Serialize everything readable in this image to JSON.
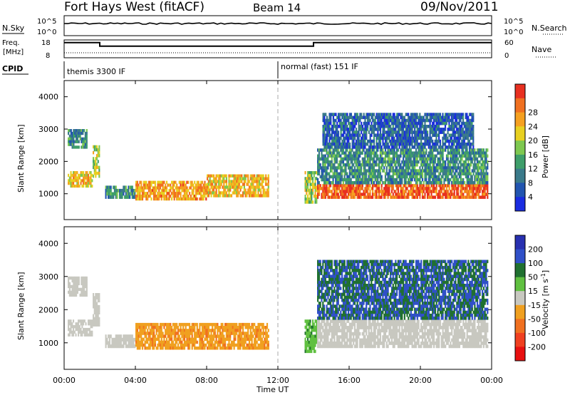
{
  "header": {
    "station": "Fort Hays West (fitACF)",
    "beam": "Beam 14",
    "date": "09/Nov/2011"
  },
  "noise_panel": {
    "left_label": "N.Sky",
    "right_label": "N.Search",
    "left_ticks": [
      "10^5",
      "10^0"
    ],
    "right_ticks": [
      "10^5",
      "10^0"
    ]
  },
  "freq_panel": {
    "left_label_1": "Freq.",
    "left_label_2": "[MHz]",
    "right_label": "Nave",
    "left_ticks": [
      "18",
      "8"
    ],
    "right_ticks": [
      "60",
      "0"
    ]
  },
  "cpid": {
    "label": "CPID",
    "modes": [
      {
        "name": "themis 3300 IF",
        "start_hour": 0
      },
      {
        "name": "normal (fast) 151 IF",
        "start_hour": 12
      }
    ]
  },
  "freq_trace": [
    {
      "hour": 0,
      "mhz": 16.5
    },
    {
      "hour": 2,
      "mhz": 16.5
    },
    {
      "hour": 2,
      "mhz": 14.5
    },
    {
      "hour": 14,
      "mhz": 14.5
    },
    {
      "hour": 14,
      "mhz": 16.5
    },
    {
      "hour": 24,
      "mhz": 16.5
    }
  ],
  "chart_data": [
    {
      "type": "heatmap",
      "quantity": "Power",
      "ylabel": "Slant Range [km]",
      "xlabel": "Time UT",
      "xlim": [
        0,
        24
      ],
      "ylim": [
        200,
        4500
      ],
      "yticks": [
        "1000",
        "2000",
        "3000",
        "4000"
      ],
      "xticks": [
        "00:00",
        "04:00",
        "08:00",
        "12:00",
        "16:00",
        "20:00",
        "00:00"
      ],
      "colorbar": {
        "label": "Power [dB]",
        "ticks": [
          "4",
          "8",
          "12",
          "16",
          "20",
          "24",
          "28"
        ],
        "range": [
          0,
          30
        ],
        "colors": [
          "#1a2ce0",
          "#2255b0",
          "#3a7a8a",
          "#3e9e6a",
          "#7ec850",
          "#e8d020",
          "#f5a020",
          "#f07020",
          "#e83020"
        ]
      },
      "echo_regions": [
        {
          "t0": 0.2,
          "t1": 1.6,
          "r0": 1200,
          "r1": 1700,
          "level": 20
        },
        {
          "t0": 0.2,
          "t1": 1.3,
          "r0": 2400,
          "r1": 3000,
          "level": 10
        },
        {
          "t0": 1.6,
          "t1": 2.0,
          "r0": 1500,
          "r1": 2500,
          "level": 16
        },
        {
          "t0": 2.3,
          "t1": 4.0,
          "r0": 850,
          "r1": 1250,
          "level": 10
        },
        {
          "t0": 4.0,
          "t1": 8.0,
          "r0": 800,
          "r1": 1400,
          "level": 22
        },
        {
          "t0": 8.0,
          "t1": 11.5,
          "r0": 900,
          "r1": 1600,
          "level": 20
        },
        {
          "t0": 13.5,
          "t1": 14.2,
          "r0": 700,
          "r1": 1700,
          "level": 16
        },
        {
          "t0": 14.2,
          "t1": 23.8,
          "r0": 850,
          "r1": 1300,
          "level": 26
        },
        {
          "t0": 14.2,
          "t1": 23.8,
          "r0": 1300,
          "r1": 2400,
          "level": 10
        },
        {
          "t0": 14.5,
          "t1": 23.0,
          "r0": 2400,
          "r1": 3500,
          "level": 6
        }
      ]
    },
    {
      "type": "heatmap",
      "quantity": "Velocity",
      "ylabel": "Slant Range [km]",
      "xlabel": "Time UT",
      "xlim": [
        0,
        24
      ],
      "ylim": [
        200,
        4500
      ],
      "yticks": [
        "1000",
        "2000",
        "3000",
        "4000"
      ],
      "xticks": [
        "00:00",
        "04:00",
        "08:00",
        "12:00",
        "16:00",
        "20:00",
        "00:00"
      ],
      "colorbar": {
        "label": "Velocity [m s",
        "label_sup": "-1",
        "label_end": "]",
        "ticks": [
          "200",
          "100",
          "50",
          "15",
          "-15",
          "-50",
          "-100",
          "-200"
        ],
        "colors": [
          "#2830b0",
          "#3050c8",
          "#207030",
          "#60c040",
          "#c8c8c0",
          "#f0a020",
          "#f07020",
          "#f04020",
          "#e81010"
        ]
      },
      "echo_regions": [
        {
          "t0": 0.2,
          "t1": 1.6,
          "r0": 1200,
          "r1": 1700,
          "level": 0
        },
        {
          "t0": 0.2,
          "t1": 1.3,
          "r0": 2400,
          "r1": 3000,
          "level": 0
        },
        {
          "t0": 1.6,
          "t1": 2.0,
          "r0": 1500,
          "r1": 2500,
          "level": 0
        },
        {
          "t0": 2.3,
          "t1": 4.0,
          "r0": 850,
          "r1": 1250,
          "level": 0
        },
        {
          "t0": 4.0,
          "t1": 11.5,
          "r0": 800,
          "r1": 1600,
          "level": -40
        },
        {
          "t0": 13.5,
          "t1": 14.2,
          "r0": 700,
          "r1": 1700,
          "level": 40
        },
        {
          "t0": 14.2,
          "t1": 23.8,
          "r0": 850,
          "r1": 1700,
          "level": 0
        },
        {
          "t0": 14.2,
          "t1": 23.8,
          "r0": 1700,
          "r1": 3500,
          "level": 100
        }
      ]
    }
  ]
}
